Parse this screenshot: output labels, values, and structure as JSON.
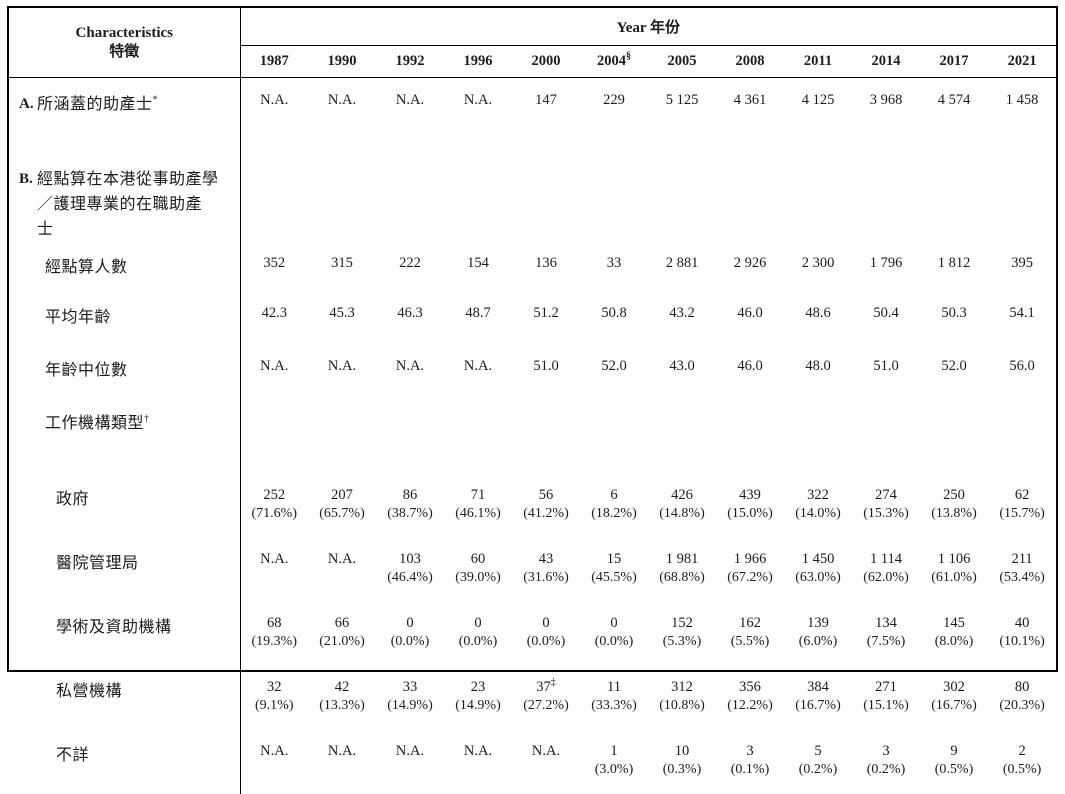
{
  "page": {
    "background": "#ffffff",
    "text_color": "#1c1c1c",
    "border_color": "#000000"
  },
  "table": {
    "header": {
      "characteristics_en": "Characteristics",
      "characteristics_zh": "特徵",
      "year_label": "Year 年份",
      "years": [
        {
          "label": "1987",
          "sup": ""
        },
        {
          "label": "1990",
          "sup": ""
        },
        {
          "label": "1992",
          "sup": ""
        },
        {
          "label": "1996",
          "sup": ""
        },
        {
          "label": "2000",
          "sup": ""
        },
        {
          "label": "2004",
          "sup": "§"
        },
        {
          "label": "2005",
          "sup": ""
        },
        {
          "label": "2008",
          "sup": ""
        },
        {
          "label": "2011",
          "sup": ""
        },
        {
          "label": "2014",
          "sup": ""
        },
        {
          "label": "2017",
          "sup": ""
        },
        {
          "label": "2021",
          "sup": ""
        }
      ]
    },
    "rows": [
      {
        "type": "data",
        "marker": "A.",
        "indent": 0,
        "label": "所涵蓋的助產士",
        "sup": "*",
        "cells": [
          {
            "v": "N.A."
          },
          {
            "v": "N.A."
          },
          {
            "v": "N.A."
          },
          {
            "v": "N.A."
          },
          {
            "v": "147"
          },
          {
            "v": "229"
          },
          {
            "v": "5 125"
          },
          {
            "v": "4 361"
          },
          {
            "v": "4 125"
          },
          {
            "v": "3 968"
          },
          {
            "v": "4 574"
          },
          {
            "v": "1 458"
          }
        ]
      },
      {
        "type": "label",
        "marker": "B.",
        "indent": 0,
        "label_lines": [
          "經點算在本港從事助產學",
          "／護理專業的在職助產",
          "士"
        ]
      },
      {
        "type": "data",
        "marker": "",
        "indent": 1,
        "label": "經點算人數",
        "cells": [
          {
            "v": "352"
          },
          {
            "v": "315"
          },
          {
            "v": "222"
          },
          {
            "v": "154"
          },
          {
            "v": "136"
          },
          {
            "v": "33"
          },
          {
            "v": "2 881"
          },
          {
            "v": "2 926"
          },
          {
            "v": "2 300"
          },
          {
            "v": "1 796"
          },
          {
            "v": "1 812"
          },
          {
            "v": "395"
          }
        ]
      },
      {
        "type": "data",
        "marker": "",
        "indent": 1,
        "label": "平均年齡",
        "cells": [
          {
            "v": "42.3"
          },
          {
            "v": "45.3"
          },
          {
            "v": "46.3"
          },
          {
            "v": "48.7"
          },
          {
            "v": "51.2"
          },
          {
            "v": "50.8"
          },
          {
            "v": "43.2"
          },
          {
            "v": "46.0"
          },
          {
            "v": "48.6"
          },
          {
            "v": "50.4"
          },
          {
            "v": "50.3"
          },
          {
            "v": "54.1"
          }
        ]
      },
      {
        "type": "data",
        "marker": "",
        "indent": 1,
        "label": "年齡中位數",
        "cells": [
          {
            "v": "N.A."
          },
          {
            "v": "N.A."
          },
          {
            "v": "N.A."
          },
          {
            "v": "N.A."
          },
          {
            "v": "51.0"
          },
          {
            "v": "52.0"
          },
          {
            "v": "43.0"
          },
          {
            "v": "46.0"
          },
          {
            "v": "48.0"
          },
          {
            "v": "51.0"
          },
          {
            "v": "52.0"
          },
          {
            "v": "56.0"
          }
        ]
      },
      {
        "type": "label",
        "marker": "",
        "indent": 1,
        "label": "工作機構類型",
        "sup": "†"
      },
      {
        "type": "data",
        "marker": "",
        "indent": 2,
        "label": "政府",
        "cells": [
          {
            "v": "252",
            "p": "(71.6%)"
          },
          {
            "v": "207",
            "p": "(65.7%)"
          },
          {
            "v": "86",
            "p": "(38.7%)"
          },
          {
            "v": "71",
            "p": "(46.1%)"
          },
          {
            "v": "56",
            "p": "(41.2%)"
          },
          {
            "v": "6",
            "p": "(18.2%)"
          },
          {
            "v": "426",
            "p": "(14.8%)"
          },
          {
            "v": "439",
            "p": "(15.0%)"
          },
          {
            "v": "322",
            "p": "(14.0%)"
          },
          {
            "v": "274",
            "p": "(15.3%)"
          },
          {
            "v": "250",
            "p": "(13.8%)"
          },
          {
            "v": "62",
            "p": "(15.7%)"
          }
        ]
      },
      {
        "type": "data",
        "marker": "",
        "indent": 2,
        "label": "醫院管理局",
        "cells": [
          {
            "v": "N.A."
          },
          {
            "v": "N.A."
          },
          {
            "v": "103",
            "p": "(46.4%)"
          },
          {
            "v": "60",
            "p": "(39.0%)"
          },
          {
            "v": "43",
            "p": "(31.6%)"
          },
          {
            "v": "15",
            "p": "(45.5%)"
          },
          {
            "v": "1 981",
            "p": "(68.8%)"
          },
          {
            "v": "1 966",
            "p": "(67.2%)"
          },
          {
            "v": "1 450",
            "p": "(63.0%)"
          },
          {
            "v": "1 114",
            "p": "(62.0%)"
          },
          {
            "v": "1 106",
            "p": "(61.0%)"
          },
          {
            "v": "211",
            "p": "(53.4%)"
          }
        ]
      },
      {
        "type": "data",
        "marker": "",
        "indent": 2,
        "label": "學術及資助機構",
        "cells": [
          {
            "v": "68",
            "p": "(19.3%)"
          },
          {
            "v": "66",
            "p": "(21.0%)"
          },
          {
            "v": "0",
            "p": "(0.0%)"
          },
          {
            "v": "0",
            "p": "(0.0%)"
          },
          {
            "v": "0",
            "p": "(0.0%)"
          },
          {
            "v": "0",
            "p": "(0.0%)"
          },
          {
            "v": "152",
            "p": "(5.3%)"
          },
          {
            "v": "162",
            "p": "(5.5%)"
          },
          {
            "v": "139",
            "p": "(6.0%)"
          },
          {
            "v": "134",
            "p": "(7.5%)"
          },
          {
            "v": "145",
            "p": "(8.0%)"
          },
          {
            "v": "40",
            "p": "(10.1%)"
          }
        ]
      },
      {
        "type": "data",
        "marker": "",
        "indent": 2,
        "label": "私營機構",
        "cells": [
          {
            "v": "32",
            "p": "(9.1%)"
          },
          {
            "v": "42",
            "p": "(13.3%)"
          },
          {
            "v": "33",
            "p": "(14.9%)"
          },
          {
            "v": "23",
            "p": "(14.9%)"
          },
          {
            "v": "37",
            "s": "‡",
            "p": "(27.2%)"
          },
          {
            "v": "11",
            "p": "(33.3%)"
          },
          {
            "v": "312",
            "p": "(10.8%)"
          },
          {
            "v": "356",
            "p": "(12.2%)"
          },
          {
            "v": "384",
            "p": "(16.7%)"
          },
          {
            "v": "271",
            "p": "(15.1%)"
          },
          {
            "v": "302",
            "p": "(16.7%)"
          },
          {
            "v": "80",
            "p": "(20.3%)"
          }
        ]
      },
      {
        "type": "data",
        "marker": "",
        "indent": 2,
        "label": "不詳",
        "cells": [
          {
            "v": "N.A."
          },
          {
            "v": "N.A."
          },
          {
            "v": "N.A."
          },
          {
            "v": "N.A."
          },
          {
            "v": "N.A."
          },
          {
            "v": "1",
            "p": "(3.0%)"
          },
          {
            "v": "10",
            "p": "(0.3%)"
          },
          {
            "v": "3",
            "p": "(0.1%)"
          },
          {
            "v": "5",
            "p": "(0.2%)"
          },
          {
            "v": "3",
            "p": "(0.2%)"
          },
          {
            "v": "9",
            "p": "(0.5%)"
          },
          {
            "v": "2",
            "p": "(0.5%)"
          }
        ]
      }
    ]
  }
}
